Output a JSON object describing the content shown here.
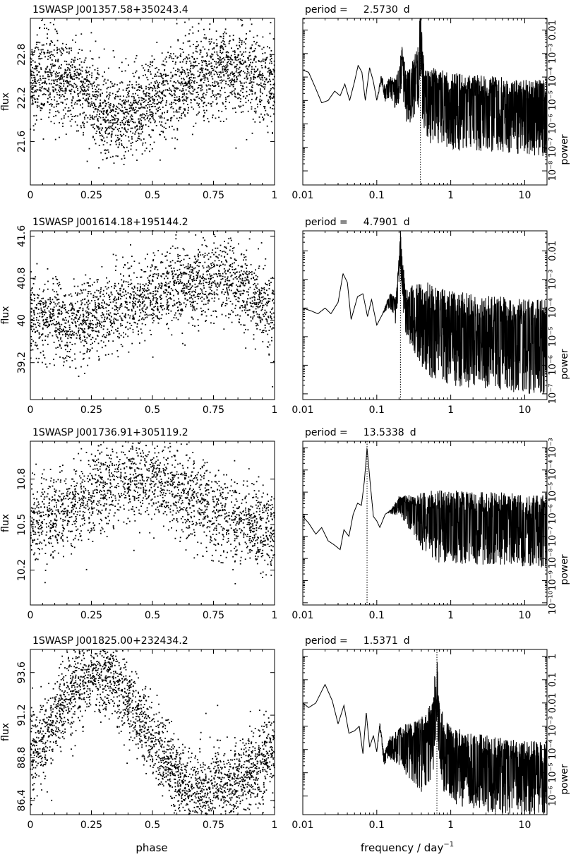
{
  "figure": {
    "xlabel_left": "phase",
    "xlabel_right_main": "frequency / day",
    "xlabel_right_exp": "−1",
    "ylabel_left": "flux",
    "ylabel_right": "power",
    "period_prefix": "period =",
    "period_unit": "d"
  },
  "chart_data": [
    {
      "type": "scatter",
      "title": "1SWASP J001357.58+350243.4",
      "xlabel": "phase",
      "ylabel": "flux",
      "xlim": [
        0,
        1
      ],
      "ylim": [
        21.0,
        23.3
      ],
      "xticks": [
        0,
        0.25,
        0.5,
        0.75,
        1
      ],
      "xtick_labels": [
        "0",
        "0.25",
        "0.5",
        "0.75",
        "1"
      ],
      "yticks": [
        21.6,
        22.2,
        22.8
      ],
      "ytick_labels": [
        "21.6",
        "22.2",
        "22.8"
      ],
      "profile": [
        [
          0,
          22.45
        ],
        [
          0.05,
          22.55
        ],
        [
          0.1,
          22.5
        ],
        [
          0.15,
          22.45
        ],
        [
          0.2,
          22.35
        ],
        [
          0.25,
          22.15
        ],
        [
          0.3,
          22.0
        ],
        [
          0.35,
          21.95
        ],
        [
          0.4,
          21.95
        ],
        [
          0.45,
          22.05
        ],
        [
          0.5,
          22.15
        ],
        [
          0.55,
          22.25
        ],
        [
          0.6,
          22.35
        ],
        [
          0.65,
          22.45
        ],
        [
          0.7,
          22.5
        ],
        [
          0.75,
          22.55
        ],
        [
          0.8,
          22.6
        ],
        [
          0.85,
          22.55
        ],
        [
          0.9,
          22.55
        ],
        [
          0.95,
          22.5
        ],
        [
          1.0,
          22.45
        ]
      ],
      "scatter_sigma": 0.3,
      "n_points": 2600
    },
    {
      "type": "line",
      "title": "period = 2.5730 d",
      "period": "2.5730",
      "xlabel": "frequency / day^-1",
      "ylabel": "power",
      "xscale": "log",
      "yscale": "log",
      "xlim": [
        0.01,
        20
      ],
      "ylim_log10": [
        -8.6,
        -1.5
      ],
      "xticks": [
        0.01,
        0.1,
        1,
        10
      ],
      "xtick_labels": [
        "0.01",
        "0.1",
        "1",
        "10"
      ],
      "yticks_log10": [
        -8,
        -7,
        -6,
        -5,
        -4,
        -3,
        -2
      ],
      "ytick_labels": [
        "10⁻⁸",
        "10⁻⁷",
        "10⁻⁶",
        "10⁻⁵",
        "10⁻⁴",
        "10⁻³",
        "0.01"
      ],
      "peak_frequency": 0.389,
      "envelope_log10": [
        [
          0.01,
          -3.7
        ],
        [
          0.012,
          -3.8
        ],
        [
          0.015,
          -4.5
        ],
        [
          0.018,
          -5.1
        ],
        [
          0.022,
          -5.0
        ],
        [
          0.027,
          -4.6
        ],
        [
          0.032,
          -4.8
        ],
        [
          0.037,
          -4.3
        ],
        [
          0.043,
          -5.0
        ],
        [
          0.05,
          -4.2
        ],
        [
          0.056,
          -3.5
        ],
        [
          0.063,
          -3.8
        ],
        [
          0.07,
          -5.0
        ],
        [
          0.08,
          -3.6
        ],
        [
          0.09,
          -4.2
        ],
        [
          0.1,
          -5.0
        ],
        [
          0.115,
          -4.0
        ],
        [
          0.13,
          -4.6
        ],
        [
          0.15,
          -4.2
        ],
        [
          0.18,
          -4.4
        ],
        [
          0.2,
          -3.9
        ],
        [
          0.22,
          -3.2
        ],
        [
          0.25,
          -4.4
        ],
        [
          0.3,
          -4.0
        ],
        [
          0.34,
          -3.7
        ],
        [
          0.37,
          -3.0
        ],
        [
          0.389,
          -1.7
        ],
        [
          0.41,
          -3.3
        ],
        [
          0.45,
          -4.6
        ],
        [
          0.6,
          -4.5
        ],
        [
          1,
          -4.7
        ],
        [
          2,
          -4.8
        ],
        [
          5,
          -4.9
        ],
        [
          10,
          -5.0
        ],
        [
          20,
          -5.0
        ]
      ],
      "noise_from": 0.1
    },
    {
      "type": "scatter",
      "title": "1SWASP J001614.18+195144.2",
      "xlabel": "phase",
      "ylabel": "flux",
      "xlim": [
        0,
        1
      ],
      "ylim": [
        38.5,
        41.7
      ],
      "xticks": [
        0,
        0.25,
        0.5,
        0.75,
        1
      ],
      "xtick_labels": [
        "0",
        "0.25",
        "0.5",
        "0.75",
        "1"
      ],
      "yticks": [
        39.2,
        40,
        40.8,
        41.6
      ],
      "ytick_labels": [
        "39.2",
        "40",
        "40.8",
        "41.6"
      ],
      "profile": [
        [
          0,
          40.05
        ],
        [
          0.05,
          40.1
        ],
        [
          0.1,
          40.05
        ],
        [
          0.15,
          39.9
        ],
        [
          0.2,
          39.95
        ],
        [
          0.25,
          40.05
        ],
        [
          0.3,
          40.15
        ],
        [
          0.35,
          40.2
        ],
        [
          0.4,
          40.35
        ],
        [
          0.45,
          40.45
        ],
        [
          0.5,
          40.55
        ],
        [
          0.55,
          40.6
        ],
        [
          0.6,
          40.65
        ],
        [
          0.65,
          40.7
        ],
        [
          0.7,
          40.75
        ],
        [
          0.75,
          40.85
        ],
        [
          0.8,
          40.85
        ],
        [
          0.85,
          40.7
        ],
        [
          0.9,
          40.55
        ],
        [
          0.95,
          40.3
        ],
        [
          1.0,
          40.05
        ]
      ],
      "scatter_sigma": 0.38,
      "n_points": 2200
    },
    {
      "type": "line",
      "title": "period = 4.7901 d",
      "period": "4.7901",
      "xlabel": "frequency / day^-1",
      "ylabel": "power",
      "xscale": "log",
      "yscale": "log",
      "xlim": [
        0.01,
        20
      ],
      "ylim_log10": [
        -7.2,
        -1.3
      ],
      "xticks": [
        0.01,
        0.1,
        1,
        10
      ],
      "xtick_labels": [
        "0.01",
        "0.1",
        "1",
        "10"
      ],
      "yticks_log10": [
        -7,
        -6,
        -5,
        -4,
        -3,
        -2
      ],
      "ytick_labels": [
        "10⁻⁷",
        "10⁻⁶",
        "10⁻⁵",
        "10⁻⁴",
        "10⁻³",
        "0.01"
      ],
      "peak_frequency": 0.209,
      "envelope_log10": [
        [
          0.01,
          -4.0
        ],
        [
          0.013,
          -4.1
        ],
        [
          0.016,
          -4.2
        ],
        [
          0.02,
          -4.0
        ],
        [
          0.024,
          -4.2
        ],
        [
          0.03,
          -3.8
        ],
        [
          0.035,
          -2.8
        ],
        [
          0.04,
          -3.1
        ],
        [
          0.045,
          -4.4
        ],
        [
          0.055,
          -3.6
        ],
        [
          0.065,
          -3.5
        ],
        [
          0.075,
          -4.3
        ],
        [
          0.085,
          -3.7
        ],
        [
          0.1,
          -4.6
        ],
        [
          0.12,
          -4.2
        ],
        [
          0.15,
          -3.6
        ],
        [
          0.18,
          -3.9
        ],
        [
          0.2,
          -2.5
        ],
        [
          0.209,
          -1.5
        ],
        [
          0.22,
          -2.6
        ],
        [
          0.25,
          -3.8
        ],
        [
          0.3,
          -3.8
        ],
        [
          0.4,
          -3.9
        ],
        [
          0.6,
          -4.1
        ],
        [
          1,
          -4.3
        ],
        [
          2,
          -4.4
        ],
        [
          5,
          -4.5
        ],
        [
          10,
          -4.6
        ],
        [
          20,
          -4.6
        ]
      ],
      "noise_from": 0.12
    },
    {
      "type": "scatter",
      "title": "1SWASP J001736.91+305119.2",
      "xlabel": "phase",
      "ylabel": "flux",
      "xlim": [
        0,
        1
      ],
      "ylim": [
        9.97,
        11.05
      ],
      "xticks": [
        0,
        0.25,
        0.5,
        0.75,
        1
      ],
      "xtick_labels": [
        "0",
        "0.25",
        "0.5",
        "0.75",
        "1"
      ],
      "yticks": [
        10.2,
        10.5,
        10.8
      ],
      "ytick_labels": [
        "10.2",
        "10.5",
        "10.8"
      ],
      "profile": [
        [
          0,
          10.5
        ],
        [
          0.05,
          10.52
        ],
        [
          0.1,
          10.55
        ],
        [
          0.15,
          10.6
        ],
        [
          0.2,
          10.65
        ],
        [
          0.25,
          10.7
        ],
        [
          0.3,
          10.74
        ],
        [
          0.35,
          10.78
        ],
        [
          0.4,
          10.8
        ],
        [
          0.45,
          10.8
        ],
        [
          0.5,
          10.78
        ],
        [
          0.55,
          10.76
        ],
        [
          0.6,
          10.72
        ],
        [
          0.65,
          10.68
        ],
        [
          0.7,
          10.63
        ],
        [
          0.75,
          10.58
        ],
        [
          0.8,
          10.55
        ],
        [
          0.85,
          10.52
        ],
        [
          0.9,
          10.5
        ],
        [
          0.95,
          10.48
        ],
        [
          1.0,
          10.47
        ]
      ],
      "scatter_sigma": 0.14,
      "n_points": 2100
    },
    {
      "type": "line",
      "title": "period = 13.5338 d",
      "period": "13.5338",
      "xlabel": "frequency / day^-1",
      "ylabel": "power",
      "xscale": "log",
      "yscale": "log",
      "xlim": [
        0.01,
        20
      ],
      "ylim_log10": [
        -10.1,
        -2.7
      ],
      "xticks": [
        0.01,
        0.1,
        1,
        10
      ],
      "xtick_labels": [
        "0.01",
        "0.1",
        "1",
        "10"
      ],
      "yticks_log10": [
        -10,
        -9,
        -8,
        -7,
        -6,
        -5,
        -4,
        -3
      ],
      "ytick_labels": [
        "10⁻¹⁰",
        "10⁻⁹",
        "10⁻⁸",
        "10⁻⁷",
        "10⁻⁶",
        "10⁻⁵",
        "10⁻⁴",
        "10⁻³"
      ],
      "peak_frequency": 0.0739,
      "envelope_log10": [
        [
          0.01,
          -6.1
        ],
        [
          0.012,
          -6.4
        ],
        [
          0.015,
          -6.9
        ],
        [
          0.018,
          -6.6
        ],
        [
          0.022,
          -7.2
        ],
        [
          0.027,
          -7.4
        ],
        [
          0.032,
          -7.6
        ],
        [
          0.036,
          -6.7
        ],
        [
          0.042,
          -7.0
        ],
        [
          0.048,
          -6.0
        ],
        [
          0.055,
          -5.5
        ],
        [
          0.062,
          -5.6
        ],
        [
          0.068,
          -4.5
        ],
        [
          0.0739,
          -3.0
        ],
        [
          0.08,
          -4.3
        ],
        [
          0.09,
          -6.1
        ],
        [
          0.1,
          -6.3
        ],
        [
          0.11,
          -6.6
        ],
        [
          0.13,
          -6.0
        ],
        [
          0.16,
          -5.8
        ],
        [
          0.2,
          -5.4
        ],
        [
          0.3,
          -5.6
        ],
        [
          0.5,
          -5.8
        ],
        [
          1,
          -5.8
        ],
        [
          2,
          -5.9
        ],
        [
          5,
          -5.9
        ],
        [
          10,
          -6.0
        ],
        [
          20,
          -6.0
        ]
      ],
      "noise_from": 0.14
    },
    {
      "type": "scatter",
      "title": "1SWASP J001825.00+232434.2",
      "xlabel": "phase",
      "ylabel": "flux",
      "xlim": [
        0,
        1
      ],
      "ylim": [
        85.6,
        94.9
      ],
      "xticks": [
        0,
        0.25,
        0.5,
        0.75,
        1
      ],
      "xtick_labels": [
        "0",
        "0.25",
        "0.5",
        "0.75",
        "1"
      ],
      "yticks": [
        86.4,
        88.8,
        91.2,
        93.6
      ],
      "ytick_labels": [
        "86.4",
        "88.8",
        "91.2",
        "93.6"
      ],
      "profile": [
        [
          0,
          89.0
        ],
        [
          0.05,
          89.8
        ],
        [
          0.1,
          91.0
        ],
        [
          0.15,
          92.3
        ],
        [
          0.2,
          93.2
        ],
        [
          0.25,
          93.7
        ],
        [
          0.3,
          93.6
        ],
        [
          0.35,
          93.1
        ],
        [
          0.4,
          92.2
        ],
        [
          0.45,
          91.0
        ],
        [
          0.5,
          89.8
        ],
        [
          0.55,
          88.7
        ],
        [
          0.6,
          87.7
        ],
        [
          0.65,
          87.0
        ],
        [
          0.7,
          86.8
        ],
        [
          0.75,
          87.0
        ],
        [
          0.8,
          87.3
        ],
        [
          0.85,
          87.6
        ],
        [
          0.9,
          88.0
        ],
        [
          0.95,
          88.5
        ],
        [
          1.0,
          89.0
        ]
      ],
      "scatter_sigma": 1.2,
      "n_points": 2600
    },
    {
      "type": "line",
      "title": "period = 1.5371 d",
      "period": "1.5371",
      "xlabel": "frequency / day^-1",
      "ylabel": "power",
      "xscale": "log",
      "yscale": "log",
      "xlim": [
        0.01,
        20
      ],
      "ylim_log10": [
        -6.8,
        0.3
      ],
      "xticks": [
        0.01,
        0.1,
        1,
        10
      ],
      "xtick_labels": [
        "0.01",
        "0.1",
        "1",
        "10"
      ],
      "yticks_log10": [
        -6,
        -5,
        -4,
        -3,
        -2,
        -1,
        0
      ],
      "ytick_labels": [
        "10⁻⁶",
        "10⁻⁵",
        "10⁻⁴",
        "10⁻³",
        "0.01",
        "0.1",
        "1"
      ],
      "peak_frequency": 0.65,
      "envelope_log10": [
        [
          0.01,
          -2.0
        ],
        [
          0.012,
          -2.2
        ],
        [
          0.015,
          -2.0
        ],
        [
          0.02,
          -1.2
        ],
        [
          0.025,
          -1.9
        ],
        [
          0.03,
          -2.9
        ],
        [
          0.036,
          -2.1
        ],
        [
          0.042,
          -3.3
        ],
        [
          0.05,
          -3.2
        ],
        [
          0.058,
          -3.0
        ],
        [
          0.065,
          -4.2
        ],
        [
          0.072,
          -2.4
        ],
        [
          0.08,
          -3.9
        ],
        [
          0.09,
          -3.4
        ],
        [
          0.1,
          -4.1
        ],
        [
          0.11,
          -2.9
        ],
        [
          0.125,
          -4.3
        ],
        [
          0.15,
          -3.7
        ],
        [
          0.2,
          -3.5
        ],
        [
          0.3,
          -3.5
        ],
        [
          0.45,
          -3.4
        ],
        [
          0.58,
          -2.7
        ],
        [
          0.65,
          -0.2
        ],
        [
          0.7,
          -2.7
        ],
        [
          0.8,
          -3.4
        ],
        [
          1,
          -3.9
        ],
        [
          2,
          -4.2
        ],
        [
          5,
          -4.4
        ],
        [
          10,
          -4.5
        ],
        [
          20,
          -4.5
        ]
      ],
      "noise_from": 0.1
    }
  ]
}
